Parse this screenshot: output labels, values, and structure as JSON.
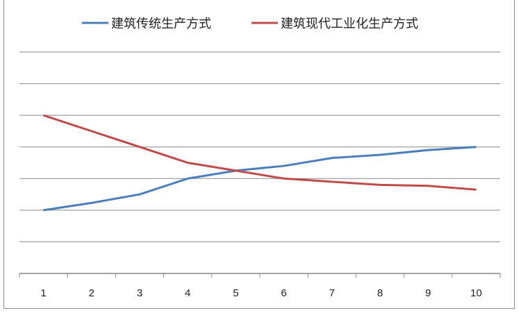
{
  "chart_data": {
    "type": "line",
    "categories": [
      "1",
      "2",
      "3",
      "4",
      "5",
      "6",
      "7",
      "8",
      "9",
      "10"
    ],
    "series": [
      {
        "name": "建筑传统生产方式",
        "color": "#4a7ebb",
        "values": [
          2,
          2.23,
          2.5,
          3,
          3.25,
          3.4,
          3.65,
          3.75,
          3.9,
          4
        ]
      },
      {
        "name": "建筑现代工业化生产方式",
        "color": "#be4b48",
        "values": [
          5,
          4.5,
          4,
          3.5,
          3.25,
          3,
          2.9,
          2.8,
          2.77,
          2.65
        ]
      }
    ],
    "ylim": [
      0,
      6
    ],
    "y_tick_labels_shown": false,
    "grid": true,
    "legend_position": "top"
  }
}
